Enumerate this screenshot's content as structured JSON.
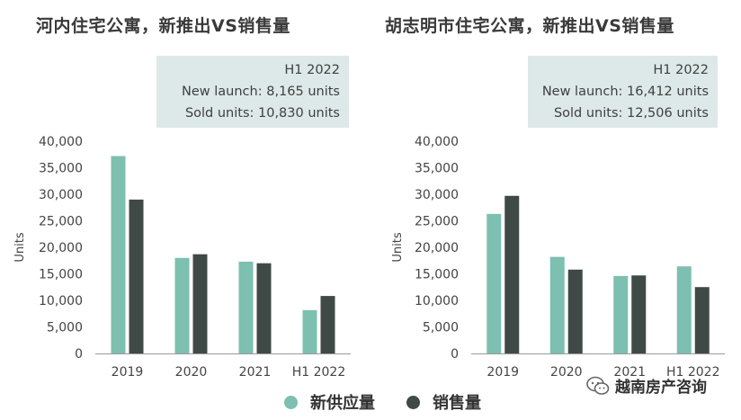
{
  "chart_data": [
    {
      "type": "bar",
      "title": "河内住宅公寓，新推出VS销售量",
      "ylabel": "Units",
      "xlabel": "",
      "ylim": [
        0,
        40000
      ],
      "yticks": [
        0,
        5000,
        10000,
        15000,
        20000,
        25000,
        30000,
        35000,
        40000
      ],
      "ytick_labels": [
        "0",
        "5,000",
        "10,000",
        "15,000",
        "20,000",
        "25,000",
        "30,000",
        "35,000",
        "40,000"
      ],
      "categories": [
        "2019",
        "2020",
        "2021",
        "H1 2022"
      ],
      "series": [
        {
          "name": "新供应量",
          "values": [
            37200,
            18000,
            17300,
            8165
          ]
        },
        {
          "name": "销售量",
          "values": [
            29000,
            18700,
            17000,
            10830
          ]
        }
      ],
      "annotation": {
        "line1": "H1 2022",
        "line2": "New launch: 8,165 units",
        "line3": "Sold units: 10,830 units"
      },
      "grid": false
    },
    {
      "type": "bar",
      "title": "胡志明市住宅公寓，新推出VS销售量",
      "ylabel": "Units",
      "xlabel": "",
      "ylim": [
        0,
        40000
      ],
      "yticks": [
        0,
        5000,
        10000,
        15000,
        20000,
        25000,
        30000,
        35000,
        40000
      ],
      "ytick_labels": [
        "0",
        "5,000",
        "10,000",
        "15,000",
        "20,000",
        "25,000",
        "30,000",
        "35,000",
        "40,000"
      ],
      "categories": [
        "2019",
        "2020",
        "2021",
        "H1 2022"
      ],
      "series": [
        {
          "name": "新供应量",
          "values": [
            26300,
            18200,
            14600,
            16412
          ]
        },
        {
          "name": "销售量",
          "values": [
            29700,
            15800,
            14700,
            12506
          ]
        }
      ],
      "annotation": {
        "line1": "H1 2022",
        "line2": "New launch: 16,412 units",
        "line3": "Sold units: 12,506 units"
      },
      "grid": false
    }
  ],
  "legend": {
    "supply_label": "新供应量",
    "sales_label": "销售量"
  },
  "colors": {
    "supply": "#7dbfb0",
    "sales": "#3f4a47",
    "note_bg": "#dde9e8",
    "axis": "#9a9a9a"
  },
  "watermark": {
    "icon": "wechat-icon",
    "text": "越南房产咨询"
  }
}
